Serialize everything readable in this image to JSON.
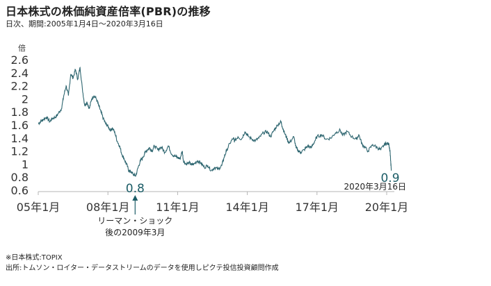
{
  "title": "日本株式の株価純資産倍率(PBR)の推移",
  "subtitle": "日次、期間:2005年1月4日～2020年3月16日",
  "colors": {
    "line": "#2e6670",
    "axis": "#b5b5b5",
    "annotation": "#1b5c66"
  },
  "chart_data": {
    "type": "line",
    "ylabel": "倍",
    "ylim": [
      0.6,
      2.6
    ],
    "yticks": [
      "2.6",
      "2.4",
      "2.2",
      "2",
      "1.8",
      "1.6",
      "1.4",
      "1.2",
      "1",
      "0.8",
      "0.6"
    ],
    "ytick_values": [
      2.6,
      2.4,
      2.2,
      2.0,
      1.8,
      1.6,
      1.4,
      1.2,
      1.0,
      0.8,
      0.6
    ],
    "xlim": [
      2005.0,
      2020.21
    ],
    "xtick_labels": [
      "05年1月",
      "08年1月",
      "11年1月",
      "14年1月",
      "17年1月",
      "20年1月"
    ],
    "xtick_values": [
      2005.0,
      2008.0,
      2011.0,
      2014.0,
      2017.0,
      2020.0
    ],
    "grid": false,
    "series": [
      {
        "values_x": [
          2005.0,
          2005.1,
          2005.2,
          2005.35,
          2005.5,
          2005.6,
          2005.75,
          2005.85,
          2006.0,
          2006.1,
          2006.2,
          2006.3,
          2006.4,
          2006.5,
          2006.6,
          2006.7,
          2006.8,
          2006.9,
          2007.0,
          2007.1,
          2007.2,
          2007.3,
          2007.4,
          2007.5,
          2007.6,
          2007.7,
          2007.8,
          2007.9,
          2008.0,
          2008.1,
          2008.2,
          2008.3,
          2008.4,
          2008.5,
          2008.6,
          2008.7,
          2008.8,
          2008.9,
          2009.0,
          2009.1,
          2009.2,
          2009.3,
          2009.4,
          2009.5,
          2009.6,
          2009.7,
          2009.8,
          2009.9,
          2010.0,
          2010.15,
          2010.3,
          2010.45,
          2010.6,
          2010.75,
          2010.9,
          2011.0,
          2011.1,
          2011.2,
          2011.25,
          2011.35,
          2011.5,
          2011.6,
          2011.7,
          2011.85,
          2012.0,
          2012.15,
          2012.3,
          2012.45,
          2012.6,
          2012.75,
          2012.9,
          2013.0,
          2013.1,
          2013.25,
          2013.4,
          2013.45,
          2013.6,
          2013.75,
          2013.9,
          2014.0,
          2014.2,
          2014.35,
          2014.5,
          2014.7,
          2014.85,
          2015.0,
          2015.15,
          2015.3,
          2015.45,
          2015.5,
          2015.6,
          2015.7,
          2015.8,
          2016.0,
          2016.1,
          2016.2,
          2016.3,
          2016.45,
          2016.6,
          2016.75,
          2016.9,
          2017.0,
          2017.2,
          2017.4,
          2017.6,
          2017.8,
          2018.0,
          2018.1,
          2018.3,
          2018.5,
          2018.7,
          2018.8,
          2018.95,
          2019.0,
          2019.2,
          2019.4,
          2019.6,
          2019.75,
          2019.9,
          2020.0,
          2020.1,
          2020.15,
          2020.2
        ],
        "values_y": [
          1.62,
          1.65,
          1.68,
          1.72,
          1.65,
          1.7,
          1.72,
          1.77,
          1.85,
          2.05,
          2.2,
          2.05,
          2.38,
          2.32,
          2.45,
          2.3,
          2.48,
          2.15,
          1.9,
          1.95,
          1.85,
          2.0,
          2.05,
          2.0,
          1.9,
          1.8,
          1.7,
          1.62,
          1.58,
          1.52,
          1.55,
          1.48,
          1.35,
          1.28,
          1.15,
          1.08,
          1.0,
          0.9,
          0.88,
          0.84,
          0.82,
          0.95,
          1.05,
          1.1,
          1.18,
          1.22,
          1.25,
          1.2,
          1.28,
          1.22,
          1.26,
          1.18,
          1.28,
          1.15,
          1.12,
          1.1,
          1.08,
          1.2,
          1.05,
          1.0,
          1.02,
          0.99,
          1.0,
          1.05,
          1.02,
          0.95,
          0.98,
          0.9,
          0.95,
          0.92,
          0.98,
          1.1,
          1.2,
          1.32,
          1.4,
          1.35,
          1.42,
          1.38,
          1.5,
          1.44,
          1.38,
          1.36,
          1.4,
          1.48,
          1.5,
          1.42,
          1.52,
          1.6,
          1.65,
          1.58,
          1.48,
          1.4,
          1.32,
          1.42,
          1.25,
          1.2,
          1.18,
          1.22,
          1.28,
          1.25,
          1.35,
          1.42,
          1.45,
          1.38,
          1.4,
          1.48,
          1.52,
          1.44,
          1.5,
          1.42,
          1.38,
          1.45,
          1.3,
          1.28,
          1.2,
          1.3,
          1.25,
          1.22,
          1.3,
          1.32,
          1.3,
          1.18,
          0.9
        ]
      }
    ],
    "annotations": [
      {
        "value": "0.8",
        "x": 2009.2,
        "y": 0.8
      },
      {
        "value": "0.9",
        "x": 2020.21,
        "y": 0.9
      }
    ],
    "end_date_label": "2020年3月16日",
    "lehman_label_1": "リーマン・ショック",
    "lehman_label_2": "後の2009年3月"
  },
  "notes": {
    "note1": "※日本株式:TOPIX",
    "note2": "出所:トムソン・ロイター・データストリームのデータを使用しピクテ投信投資顧問作成"
  }
}
